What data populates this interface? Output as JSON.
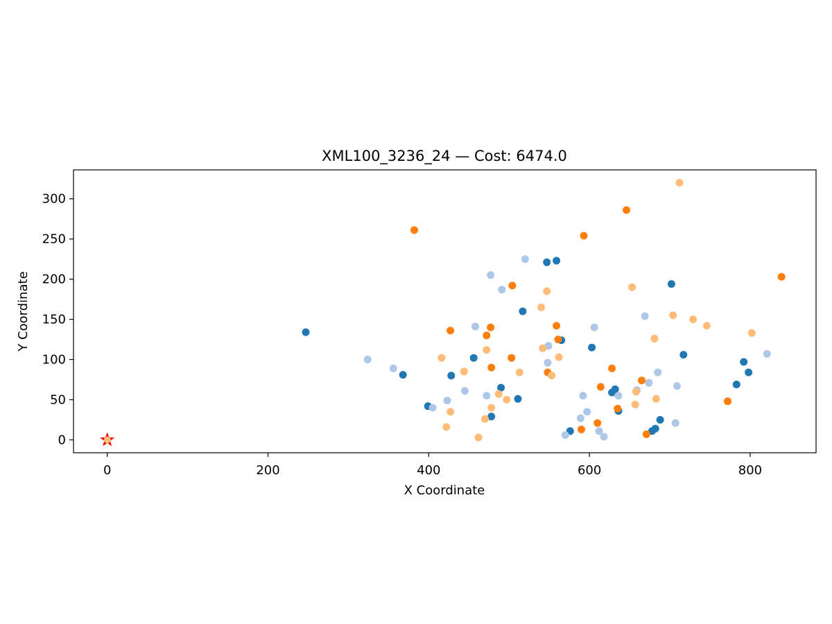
{
  "chart_data": {
    "type": "scatter",
    "title": "XML100_3236_24  —  Cost: 6474.0",
    "xlabel": "X Coordinate",
    "ylabel": "Y Coordinate",
    "xlim": [
      -42,
      882
    ],
    "ylim": [
      -16,
      336
    ],
    "xticks": [
      0,
      200,
      400,
      600,
      800
    ],
    "yticks": [
      0,
      50,
      100,
      150,
      200,
      250,
      300
    ],
    "grid": false,
    "depot": {
      "x": 0,
      "y": 0,
      "color": "#ff0000"
    },
    "series": [
      {
        "color": "#1f77b4",
        "points": [
          [
            247,
            134
          ],
          [
            368,
            81
          ],
          [
            399,
            42
          ],
          [
            428,
            80
          ],
          [
            456,
            102
          ],
          [
            478,
            29
          ],
          [
            490,
            65
          ],
          [
            511,
            51
          ],
          [
            517,
            160
          ],
          [
            547,
            221
          ],
          [
            559,
            223
          ],
          [
            565,
            124
          ],
          [
            576,
            11
          ],
          [
            603,
            115
          ],
          [
            628,
            59
          ],
          [
            632,
            63
          ],
          [
            636,
            36
          ],
          [
            678,
            11
          ],
          [
            682,
            14
          ],
          [
            688,
            25
          ],
          [
            702,
            194
          ],
          [
            717,
            106
          ],
          [
            783,
            69
          ],
          [
            792,
            97
          ],
          [
            798,
            84
          ]
        ]
      },
      {
        "color": "#aec7e8",
        "points": [
          [
            324,
            100
          ],
          [
            356,
            89
          ],
          [
            405,
            40
          ],
          [
            423,
            49
          ],
          [
            445,
            61
          ],
          [
            458,
            141
          ],
          [
            472,
            55
          ],
          [
            477,
            205
          ],
          [
            491,
            187
          ],
          [
            520,
            225
          ],
          [
            548,
            96
          ],
          [
            549,
            117
          ],
          [
            570,
            6
          ],
          [
            589,
            27
          ],
          [
            592,
            55
          ],
          [
            597,
            35
          ],
          [
            606,
            140
          ],
          [
            612,
            11
          ],
          [
            618,
            4
          ],
          [
            636,
            55
          ],
          [
            659,
            62
          ],
          [
            669,
            154
          ],
          [
            674,
            71
          ],
          [
            685,
            84
          ],
          [
            707,
            21
          ],
          [
            709,
            67
          ],
          [
            821,
            107
          ]
        ]
      },
      {
        "color": "#ff7f0e",
        "points": [
          [
            382,
            261
          ],
          [
            427,
            136
          ],
          [
            472,
            130
          ],
          [
            477,
            140
          ],
          [
            478,
            90
          ],
          [
            503,
            102
          ],
          [
            504,
            192
          ],
          [
            548,
            84
          ],
          [
            559,
            142
          ],
          [
            561,
            125
          ],
          [
            590,
            13
          ],
          [
            593,
            254
          ],
          [
            610,
            21
          ],
          [
            614,
            66
          ],
          [
            628,
            89
          ],
          [
            635,
            39
          ],
          [
            646,
            286
          ],
          [
            665,
            74
          ],
          [
            671,
            7
          ],
          [
            772,
            48
          ],
          [
            839,
            203
          ]
        ]
      },
      {
        "color": "#ffbb78",
        "points": [
          [
            416,
            102
          ],
          [
            422,
            16
          ],
          [
            427,
            35
          ],
          [
            444,
            85
          ],
          [
            462,
            3
          ],
          [
            470,
            26
          ],
          [
            472,
            112
          ],
          [
            478,
            40
          ],
          [
            487,
            57
          ],
          [
            497,
            50
          ],
          [
            513,
            84
          ],
          [
            540,
            165
          ],
          [
            542,
            114
          ],
          [
            547,
            185
          ],
          [
            553,
            80
          ],
          [
            562,
            103
          ],
          [
            653,
            190
          ],
          [
            657,
            44
          ],
          [
            658,
            60
          ],
          [
            681,
            126
          ],
          [
            683,
            51
          ],
          [
            704,
            155
          ],
          [
            729,
            150
          ],
          [
            746,
            142
          ],
          [
            802,
            133
          ],
          [
            712,
            320
          ]
        ]
      }
    ]
  }
}
